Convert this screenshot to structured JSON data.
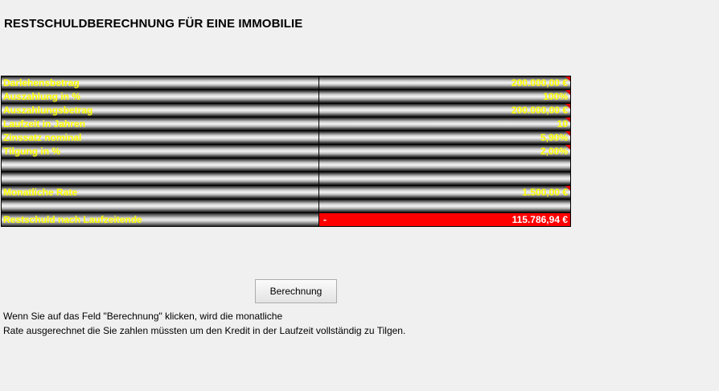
{
  "title": "RESTSCHULDBERECHNUNG FÜR EINE IMMOBILIE",
  "table": {
    "rows": [
      {
        "label": "Darlehensbetrag",
        "value": "200.000,00 €",
        "marker": true
      },
      {
        "label": "Auszahlung in %",
        "value": "100%",
        "marker": true
      },
      {
        "label": "Auszahlungsbetrag",
        "value": "200.000,00 €",
        "marker": true
      },
      {
        "label": "Laufzeit in Jahren",
        "value": "10",
        "marker": true
      },
      {
        "label": "Zinssatz nominal",
        "value": "5,90%",
        "marker": true
      },
      {
        "label": "Tilgung in %",
        "value": "2,00%",
        "marker": true
      },
      {
        "label": "",
        "value": "",
        "marker": false
      },
      {
        "label": "",
        "value": "",
        "marker": false
      },
      {
        "label": "Monatliche Rate",
        "value": "1.500,00 €",
        "marker": true
      },
      {
        "label": "",
        "value": "",
        "marker": false
      }
    ],
    "result": {
      "label": "Restschuld nach Laufzeitende",
      "prefix": "-",
      "value": "115.786,94 €"
    }
  },
  "button": {
    "label": "Berechnung"
  },
  "info": {
    "line1": "Wenn Sie auf das Feld \"Berechnung\" klicken, wird die monatliche",
    "line2": "Rate ausgerechnet die Sie zahlen müssten um den Kredit in der Laufzeit vollständig zu Tilgen."
  },
  "colors": {
    "label_text": "#ffff00",
    "result_background": "#ff0000",
    "result_text": "#ffffff",
    "marker": "#e00000"
  }
}
